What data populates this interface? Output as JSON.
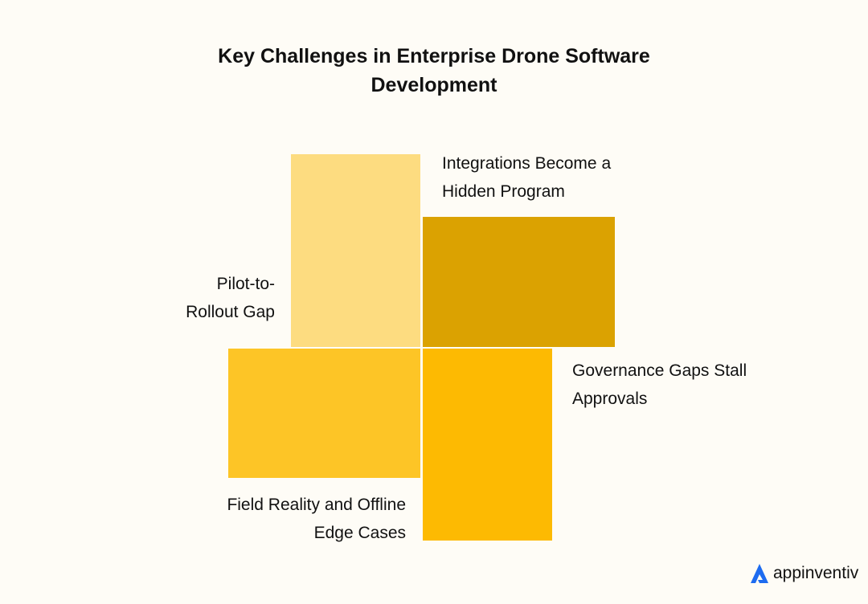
{
  "title_line1": "Key Challenges in Enterprise Drone Software",
  "title_line2": "Development",
  "blocks": [
    {
      "label_line1": "Pilot-to-",
      "label_line2": "Rollout Gap",
      "color": "#FDDC80"
    },
    {
      "label_line1": "Integrations Become a",
      "label_line2": "Hidden Program",
      "color": "#DBA201"
    },
    {
      "label_line1": "Field Reality and Offline",
      "label_line2": "Edge Cases",
      "color": "#FDC526"
    },
    {
      "label_line1": "Governance Gaps Stall",
      "label_line2": "Approvals",
      "color": "#FDBA02"
    }
  ],
  "logo": {
    "text": "appinventiv",
    "color": "#1E6CF0"
  }
}
